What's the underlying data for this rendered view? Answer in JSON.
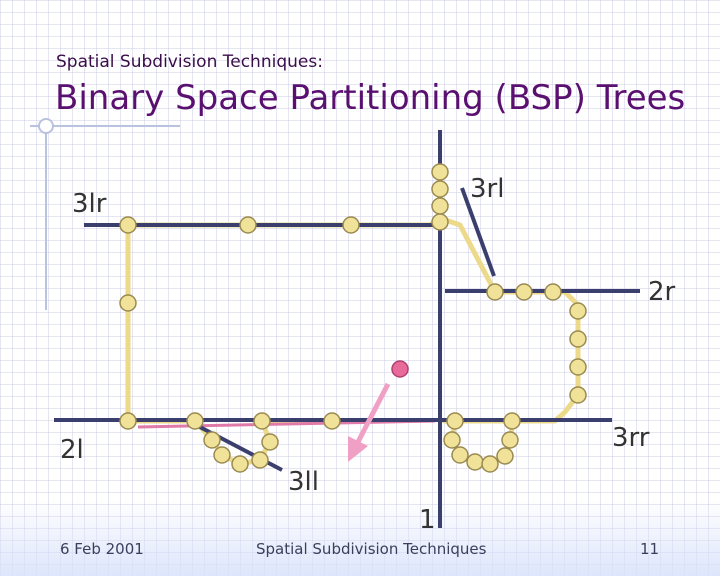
{
  "subtitle": "Spatial Subdivision Techniques:",
  "title": "Binary Space Partitioning (BSP) Trees",
  "labels": {
    "l_3lr": "3lr",
    "l_3rl": "3rl",
    "l_2r": "2r",
    "l_2l": "2l",
    "l_3rr": "3rr",
    "l_3ll": "3ll",
    "l_1": "1"
  },
  "footer": {
    "date": "6 Feb 2001",
    "center": "Spatial Subdivision Techniques",
    "page": "11"
  },
  "colors": {
    "title": "#5a1070",
    "partition_line": "#3b3f6e",
    "polygon_edge": "#ecd98a",
    "vertex_fill": "#f1e29a",
    "vertex_stroke": "#9a8a50",
    "query_point": "#e86a9a",
    "query_arrow": "#f0a0c4",
    "highlight_edge": "#e07aa8"
  }
}
